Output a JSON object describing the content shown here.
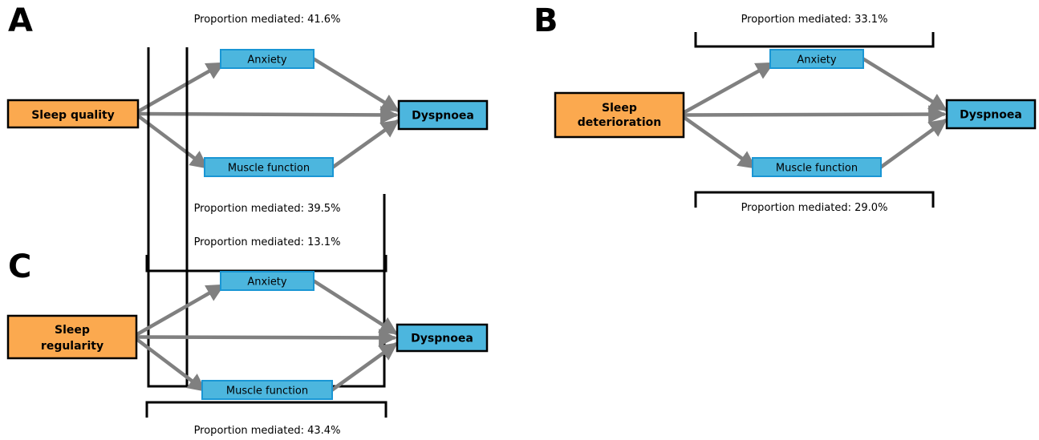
{
  "colors": {
    "exposure_fill": "#fba94f",
    "outcome_fill": "#4cb6de",
    "mediator_fill": "#4cb6de",
    "mediator_stroke": "#1a96d4",
    "arrow": "#808080",
    "bracket": "#000000",
    "text": "#000000"
  },
  "panels": [
    {
      "label": "A",
      "exposure": [
        "Sleep quality"
      ],
      "outcome": "Dyspnoea",
      "mediator_top": "Anxiety",
      "mediator_bottom": "Muscle function",
      "top_text": "Proportion mediated: 41.6%",
      "bottom_text": "Proportion mediated: 39.5%"
    },
    {
      "label": "B",
      "exposure": [
        "Sleep",
        "deterioration"
      ],
      "outcome": "Dyspnoea",
      "mediator_top": "Anxiety",
      "mediator_bottom": "Muscle function",
      "top_text": "Proportion mediated: 33.1%",
      "bottom_text": "Proportion mediated: 29.0%"
    },
    {
      "label": "C",
      "exposure": [
        "Sleep",
        "regularity"
      ],
      "outcome": "Dyspnoea",
      "mediator_top": "Anxiety",
      "mediator_bottom": "Muscle function",
      "top_text": "Proportion mediated: 13.1%",
      "bottom_text": "Proportion mediated: 43.4%"
    }
  ]
}
